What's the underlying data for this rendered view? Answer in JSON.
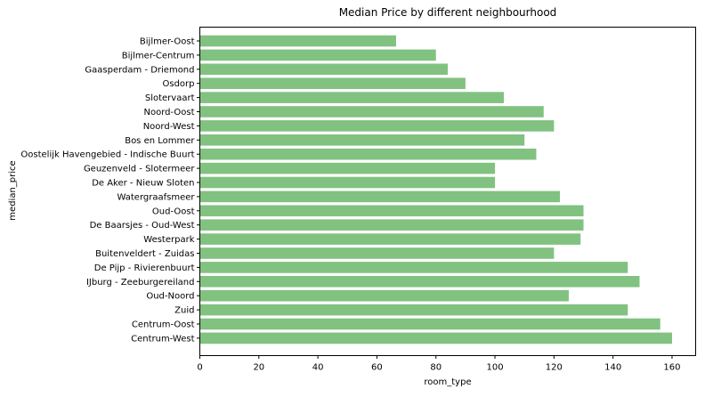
{
  "chart_data": {
    "type": "bar",
    "orientation": "horizontal",
    "title": "Median Price by different neighbourhood",
    "xlabel": "room_type",
    "ylabel": "median_price",
    "xlim": [
      0,
      168
    ],
    "xticks": [
      0,
      20,
      40,
      60,
      80,
      100,
      120,
      140,
      160
    ],
    "grid": false,
    "bar_color": "#81c281",
    "categories": [
      "Bijlmer-Oost",
      "Bijlmer-Centrum",
      "Gaasperdam - Driemond",
      "Osdorp",
      "Slotervaart",
      "Noord-Oost",
      "Noord-West",
      "Bos en Lommer",
      "Oostelijk Havengebied - Indische Buurt",
      "Geuzenveld - Slotermeer",
      "De Aker - Nieuw Sloten",
      "Watergraafsmeer",
      "Oud-Oost",
      "De Baarsjes - Oud-West",
      "Westerpark",
      "Buitenveldert - Zuidas",
      "De Pijp - Rivierenbuurt",
      "IJburg - Zeeburgereiland",
      "Oud-Noord",
      "Zuid",
      "Centrum-Oost",
      "Centrum-West"
    ],
    "values": [
      66.5,
      80,
      84,
      90,
      103,
      116.5,
      120,
      110,
      114,
      100,
      100,
      122,
      130,
      130,
      129,
      120,
      145,
      149,
      125,
      145,
      156,
      160
    ]
  }
}
